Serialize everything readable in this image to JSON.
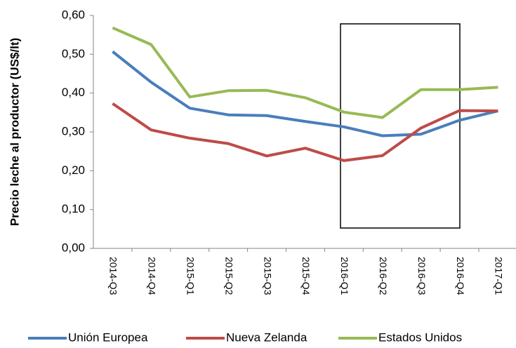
{
  "chart_data": {
    "type": "line",
    "y_label": "Precio leche al productor (US$/lt)",
    "categories": [
      "2014-Q3",
      "2014-Q4",
      "2015-Q1",
      "2015-Q2",
      "2015-Q3",
      "2015-Q4",
      "2016-Q1",
      "2016-Q2",
      "2016-Q3",
      "2016-Q4",
      "2017-Q1"
    ],
    "series": [
      {
        "name": "Unión Europea",
        "color": "#4a7ebb",
        "values": [
          0.507,
          0.428,
          0.361,
          0.344,
          0.342,
          0.327,
          0.313,
          0.29,
          0.294,
          0.33,
          0.354
        ]
      },
      {
        "name": "Nueva Zelanda",
        "color": "#be4b48",
        "values": [
          0.373,
          0.305,
          0.284,
          0.27,
          0.238,
          0.258,
          0.226,
          0.239,
          0.31,
          0.355,
          0.354
        ]
      },
      {
        "name": "Estados Unidos",
        "color": "#98b954",
        "values": [
          0.568,
          0.525,
          0.39,
          0.406,
          0.407,
          0.388,
          0.351,
          0.337,
          0.409,
          0.409,
          0.415
        ]
      }
    ],
    "ylim": [
      0,
      0.6
    ],
    "yticks": [
      {
        "value": 0,
        "label": "0,00"
      },
      {
        "value": 0.1,
        "label": "0,10"
      },
      {
        "value": 0.2,
        "label": "0,20"
      },
      {
        "value": 0.3,
        "label": "0,30"
      },
      {
        "value": 0.4,
        "label": "0,40"
      },
      {
        "value": 0.5,
        "label": "0,50"
      },
      {
        "value": 0.6,
        "label": "0,60"
      }
    ],
    "legend": "bottom"
  }
}
